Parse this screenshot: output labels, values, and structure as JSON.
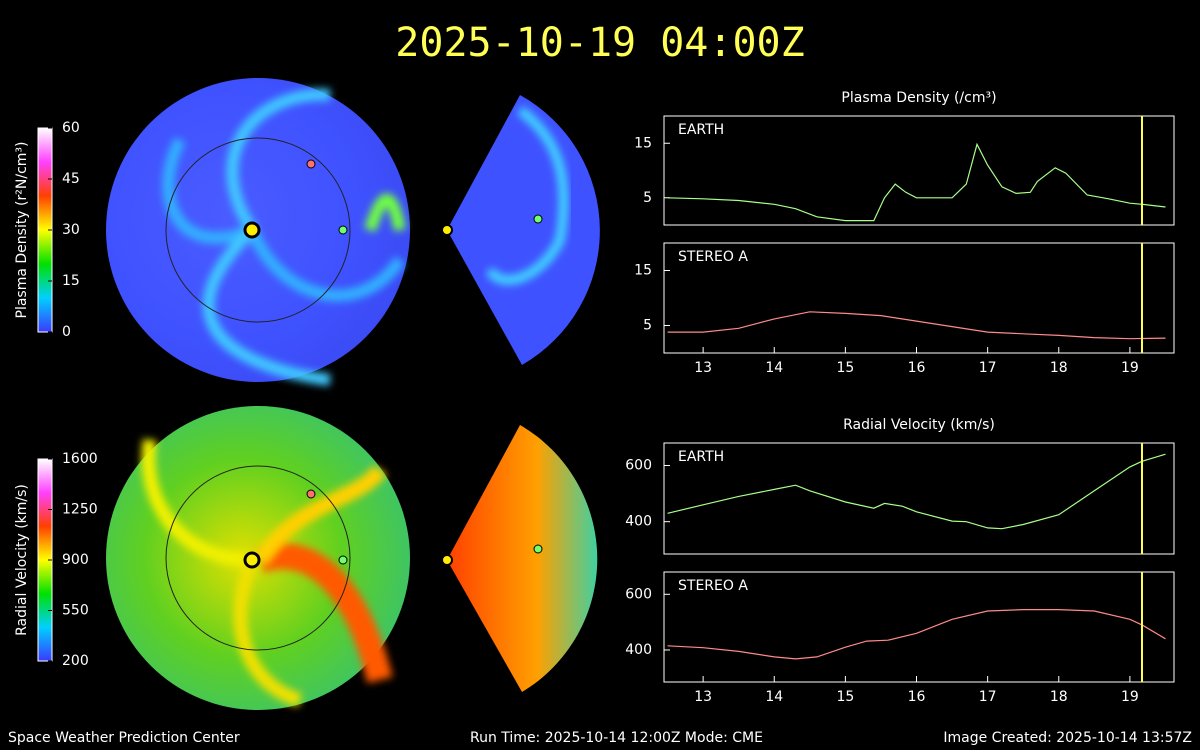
{
  "title": "2025-10-19 04:00Z",
  "footer": {
    "left": "Space Weather Prediction Center",
    "center": "Run Time: 2025-10-14 12:00Z  Mode: CME",
    "right": "Image Created: 2025-10-14 13:57Z"
  },
  "chart_data": [
    {
      "type": "colorbar",
      "title": "Plasma Density (r²N/cm³)",
      "ylim": [
        0,
        60
      ],
      "yticks": [
        0,
        15,
        30,
        45,
        60
      ],
      "colors": [
        "#3a3aff",
        "#00d0ff",
        "#00e000",
        "#ffff00",
        "#ff4000",
        "#ff40ff",
        "#ffffff"
      ]
    },
    {
      "type": "colorbar",
      "title": "Radial Velocity (km/s)",
      "ylim": [
        200,
        1600
      ],
      "yticks": [
        200,
        550,
        900,
        1250,
        1600
      ],
      "colors": [
        "#3a3aff",
        "#00d0ff",
        "#00e000",
        "#ffff00",
        "#ff4000",
        "#ff40ff",
        "#ffffff"
      ]
    },
    {
      "type": "line",
      "title": "Plasma Density (/cm³)",
      "xlim": [
        12.45,
        19.62
      ],
      "ylim": [
        0,
        20
      ],
      "yticks": [
        5,
        15
      ],
      "time_marker": 19.17,
      "x": [
        12.5,
        13,
        13.5,
        14,
        14.3,
        14.6,
        15,
        15.4,
        15.55,
        15.7,
        15.85,
        16,
        16.5,
        16.7,
        16.85,
        17,
        17.2,
        17.4,
        17.6,
        17.7,
        17.95,
        18.1,
        18.4,
        18.7,
        19,
        19.17,
        19.5
      ],
      "series": [
        {
          "name": "EARTH",
          "color": "#a8ff8a",
          "values": [
            5,
            4.8,
            4.5,
            3.8,
            3,
            1.5,
            0.8,
            0.8,
            5,
            7.5,
            6,
            5,
            5,
            7.5,
            14.8,
            11,
            7,
            5.8,
            6,
            8,
            10.5,
            9.5,
            5.5,
            4.8,
            4,
            3.8,
            3.3
          ]
        }
      ]
    },
    {
      "type": "line",
      "xlim": [
        12.45,
        19.62
      ],
      "ylim": [
        0,
        20
      ],
      "yticks": [
        5,
        15
      ],
      "time_marker": 19.17,
      "x": [
        12.5,
        13,
        13.5,
        14,
        14.5,
        15,
        15.5,
        16,
        16.5,
        17,
        17.5,
        18,
        18.5,
        19,
        19.5
      ],
      "xticks": [
        13,
        14,
        15,
        16,
        17,
        18,
        19
      ],
      "series": [
        {
          "name": "STEREO A",
          "color": "#ff8a8a",
          "values": [
            3.8,
            3.8,
            4.5,
            6.2,
            7.5,
            7.2,
            6.8,
            5.8,
            4.8,
            3.8,
            3.5,
            3.2,
            2.8,
            2.6,
            2.7
          ]
        }
      ]
    },
    {
      "type": "line",
      "title": "Radial Velocity (km/s)",
      "xlim": [
        12.45,
        19.62
      ],
      "ylim": [
        285,
        680
      ],
      "yticks": [
        400,
        600
      ],
      "time_marker": 19.17,
      "x": [
        12.5,
        13,
        13.5,
        14,
        14.3,
        14.5,
        15,
        15.4,
        15.55,
        15.8,
        16,
        16.5,
        16.7,
        17,
        17.2,
        17.5,
        18,
        18.5,
        19,
        19.17,
        19.5
      ],
      "series": [
        {
          "name": "EARTH",
          "color": "#a8ff8a",
          "values": [
            430,
            460,
            490,
            515,
            530,
            510,
            470,
            448,
            465,
            455,
            435,
            402,
            400,
            378,
            375,
            390,
            425,
            510,
            595,
            615,
            640
          ]
        }
      ]
    },
    {
      "type": "line",
      "xlim": [
        12.45,
        19.62
      ],
      "ylim": [
        285,
        680
      ],
      "yticks": [
        400,
        600
      ],
      "time_marker": 19.17,
      "x": [
        12.5,
        13,
        13.5,
        14,
        14.3,
        14.6,
        15,
        15.3,
        15.6,
        16,
        16.5,
        17,
        17.5,
        18,
        18.5,
        19,
        19.17,
        19.5
      ],
      "xticks": [
        13,
        14,
        15,
        16,
        17,
        18,
        19
      ],
      "series": [
        {
          "name": "STEREO A",
          "color": "#ff8a8a",
          "values": [
            415,
            408,
            395,
            375,
            368,
            375,
            410,
            432,
            435,
            460,
            510,
            540,
            545,
            545,
            540,
            510,
            490,
            440
          ]
        }
      ]
    }
  ]
}
